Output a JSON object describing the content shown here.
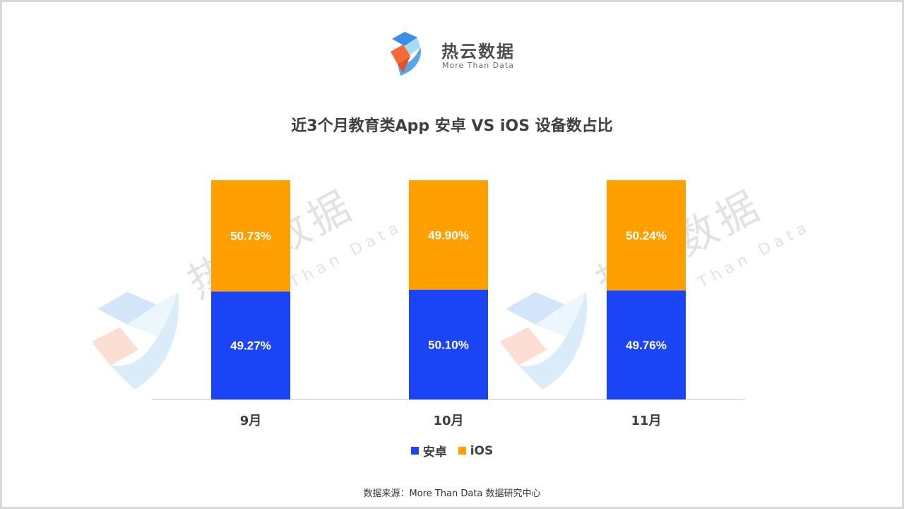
{
  "brand": {
    "name": "热云数据",
    "tagline": "More Than Data",
    "watermark_name": "热云数据",
    "watermark_tagline": "More Than Data"
  },
  "colors": {
    "android": "#1a44f5",
    "ios": "#ff9f00",
    "axis": "#d0d0d0",
    "label_text": "#ffffff",
    "tick_text": "#3f3f3f"
  },
  "chart_data": {
    "type": "bar",
    "stacked": true,
    "title": "近3个月教育类App 安卓 VS iOS 设备数占比",
    "categories": [
      "9月",
      "10月",
      "11月"
    ],
    "series": [
      {
        "name": "安卓",
        "values": [
          49.27,
          50.1,
          49.76
        ],
        "labels": [
          "49.27%",
          "50.10%",
          "49.76%"
        ]
      },
      {
        "name": "iOS",
        "values": [
          50.73,
          49.9,
          50.24
        ],
        "labels": [
          "50.73%",
          "49.90%",
          "50.24%"
        ]
      }
    ],
    "ylim": [
      0,
      100
    ],
    "grid": false,
    "legend": "bottom-center"
  },
  "footer": {
    "source": "数据来源：More Than Data 数据研究中心"
  }
}
